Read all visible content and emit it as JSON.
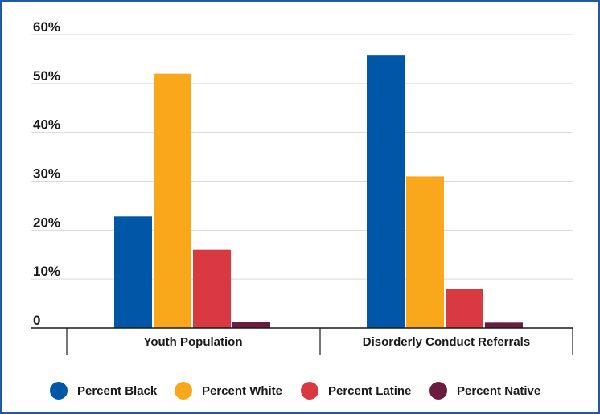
{
  "chart_data": {
    "type": "bar",
    "title": "",
    "xlabel": "",
    "ylabel": "",
    "ylim": [
      0,
      60
    ],
    "y_ticks": [
      0,
      10,
      20,
      30,
      40,
      50,
      60
    ],
    "y_tick_labels": [
      "0",
      "10%",
      "20%",
      "30%",
      "40%",
      "50%",
      "60%"
    ],
    "categories": [
      "Youth Population",
      "Disorderly Conduct Referrals"
    ],
    "grid": true,
    "legend_position": "bottom",
    "series": [
      {
        "name": "Percent Black",
        "color": "#0057a8",
        "values": [
          22.8,
          55.7
        ]
      },
      {
        "name": "Percent White",
        "color": "#f9a81c",
        "values": [
          52.0,
          31.0
        ]
      },
      {
        "name": "Percent Latine",
        "color": "#d93a42",
        "values": [
          16.0,
          8.0
        ]
      },
      {
        "name": "Percent Native",
        "color": "#6b1d3f",
        "values": [
          1.3,
          1.1
        ]
      }
    ],
    "colors": {
      "border": "#1f5aa8",
      "grid": "#d9d9d9",
      "axis": "#1a1a1a"
    }
  }
}
